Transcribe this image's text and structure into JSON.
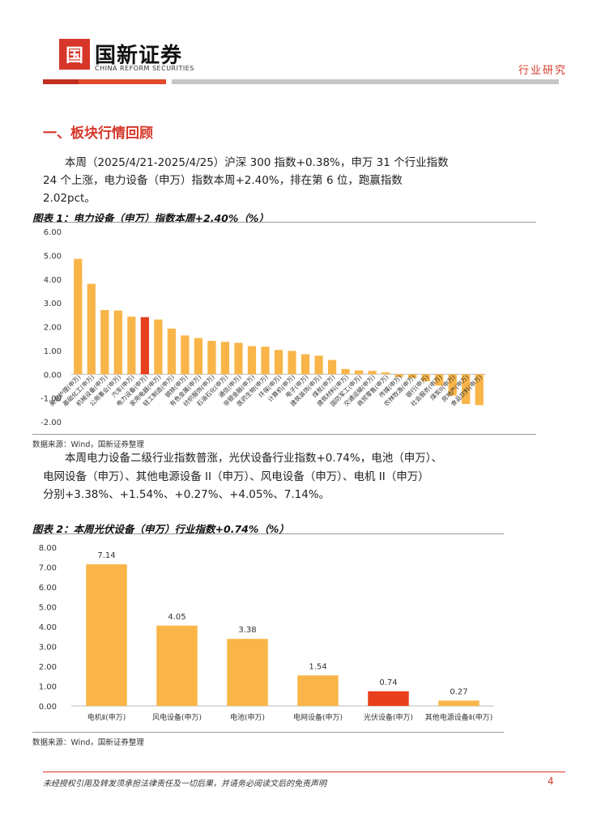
{
  "header": {
    "logo_mark": "国",
    "logo_cn": "国新证券",
    "logo_en": "CHINA REFORM SECURITIES",
    "doc_type": "行业研究"
  },
  "section": {
    "title": "一、板块行情回顾",
    "para1": "本周（2025/4/21-2025/4/25）沪深 300 指数+0.38%，申万 31 个行业指数 24 个上涨，电力设备（申万）指数本周+2.40%，排在第 6 位，跑赢指数 2.02pct。",
    "para2_line1": "本周电力设备二级行业指数普涨，光伏设备行业指数+0.74%，电池（申万）、",
    "para2_line2": "电网设备（申万）、其他电源设备 II（申万）、风电设备（申万）、电机 II（申万）",
    "para2_line3": "分别+3.38%、+1.54%、+0.27%、+4.05%、7.14%。"
  },
  "figure1": {
    "title": "图表 1：电力设备（申万）指数本周+2.40%（%）",
    "source": "数据来源：Wind，国新证券整理"
  },
  "figure2": {
    "title": "图表 2：本周光伏设备（申万）行业指数+0.74%（%）",
    "source": "数据来源：Wind，国新证券整理"
  },
  "footer": {
    "disclaimer": "未经授权引用及转发须承担法律责任及一切后果，并请务必阅读文后的免责声明",
    "page": "4"
  },
  "colors": {
    "bar": "#f9b548",
    "highlight": "#e8401c",
    "accent": "#d6372a"
  },
  "chart_data": [
    {
      "type": "bar",
      "categories": [
        "美容护理(申万)",
        "基础化工(申万)",
        "机械设备(申万)",
        "公用事业(申万)",
        "汽车(申万)",
        "电力设备(申万)",
        "家用电器(申万)",
        "轻工制造(申万)",
        "钢铁(申万)",
        "有色金属(申万)",
        "纺织服饰(申万)",
        "石油石化(申万)",
        "通信(申万)",
        "非银金融(申万)",
        "医药生物(申万)",
        "环保(申万)",
        "计算机(申万)",
        "电子(申万)",
        "建筑装饰(申万)",
        "煤炭(申万)",
        "建筑材料(申万)",
        "国防军工(申万)",
        "交通运输(申万)",
        "商贸零售(申万)",
        "传媒(申万)",
        "农林牧渔(申万)",
        "银行(申万)",
        "社会服务(申万)",
        "煤炭II(申万)",
        "房地产(申万)",
        "食品饮料(申万)"
      ],
      "values": [
        4.85,
        3.8,
        2.7,
        2.68,
        2.42,
        2.4,
        2.3,
        1.92,
        1.63,
        1.52,
        1.4,
        1.36,
        1.32,
        1.18,
        1.16,
        1.02,
        0.98,
        0.84,
        0.78,
        0.6,
        0.22,
        0.16,
        0.14,
        0.08,
        -0.12,
        -0.16,
        -0.3,
        -0.48,
        -0.9,
        -1.25,
        -1.3
      ],
      "highlight_index": 5,
      "ylim": [
        -2,
        6
      ],
      "yticks": [
        "-2.00",
        "-1.00",
        "0.00",
        "1.00",
        "2.00",
        "3.00",
        "4.00",
        "5.00",
        "6.00"
      ],
      "title": "",
      "xlabel": "",
      "ylabel": "",
      "grid": false,
      "legend": "none"
    },
    {
      "type": "bar",
      "categories": [
        "电机Ⅱ(申万)",
        "风电设备(申万)",
        "电池(申万)",
        "电网设备(申万)",
        "光伏设备(申万)",
        "其他电源设备Ⅱ(申万)"
      ],
      "values": [
        7.14,
        4.05,
        3.38,
        1.54,
        0.74,
        0.27
      ],
      "data_labels": [
        "7.14",
        "4.05",
        "3.38",
        "1.54",
        "0.74",
        "0.27"
      ],
      "highlight_index": 4,
      "ylim": [
        0,
        8
      ],
      "yticks": [
        "0.00",
        "1.00",
        "2.00",
        "3.00",
        "4.00",
        "5.00",
        "6.00",
        "7.00",
        "8.00"
      ],
      "title": "",
      "xlabel": "",
      "ylabel": "",
      "grid": false,
      "legend": "none"
    }
  ]
}
